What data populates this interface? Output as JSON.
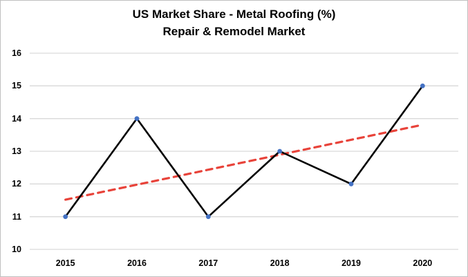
{
  "chart_data": {
    "type": "line",
    "title_lines": [
      "US Market Share - Metal Roofing (%)",
      "Repair & Remodel Market"
    ],
    "categories": [
      "2015",
      "2016",
      "2017",
      "2018",
      "2019",
      "2020"
    ],
    "series": [
      {
        "name": "US Market Share - Metal Roofing",
        "values": [
          11,
          14,
          11,
          13,
          12,
          15
        ],
        "line_color": "#000000",
        "marker_color": "#4472c4"
      }
    ],
    "trendline": {
      "type": "linear",
      "start_value": 11.52,
      "end_value": 13.81,
      "color": "#e8433a",
      "dashed": true
    },
    "ylim": [
      10,
      16
    ],
    "yticks": [
      10,
      11,
      12,
      13,
      14,
      15,
      16
    ],
    "grid": "horizontal",
    "legend": "none",
    "gridline_color": "#d9d9d9",
    "background_color": "#ffffff",
    "frame_border_color": "#bfbfbf"
  }
}
